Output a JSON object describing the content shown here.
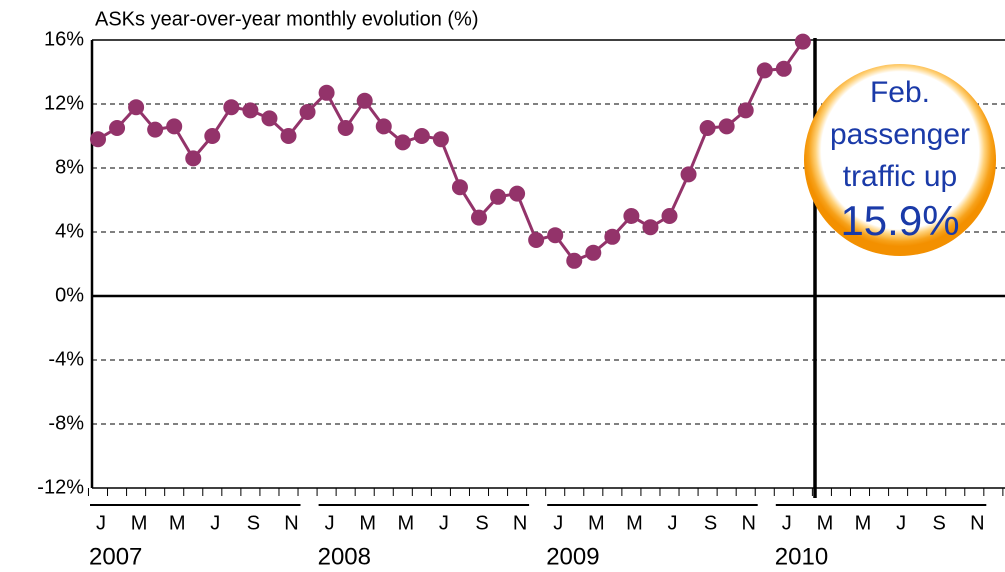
{
  "chart_data": {
    "type": "line",
    "title": "ASKs year-over-year monthly evolution (%)",
    "categories": [
      "J",
      null,
      "M",
      null,
      "M",
      null,
      "J",
      null,
      "S",
      null,
      "N",
      null,
      "J",
      null,
      "M",
      null,
      "M",
      null,
      "J",
      null,
      "S",
      null,
      "N",
      null,
      "J",
      null,
      "M",
      null,
      "M",
      null,
      "J",
      null,
      "S",
      null,
      "N",
      null,
      "J",
      null,
      "M",
      null,
      "M",
      null,
      "J",
      null,
      "S",
      null,
      "N",
      null
    ],
    "years": [
      "2007",
      "2008",
      "2009",
      "2010"
    ],
    "series": [
      {
        "color": "#93336a",
        "values": [
          9.8,
          10.5,
          11.8,
          10.4,
          10.6,
          8.6,
          10.0,
          11.8,
          11.6,
          11.1,
          10.0,
          11.5,
          12.7,
          10.5,
          12.2,
          10.6,
          9.6,
          10.0,
          9.8,
          6.8,
          4.9,
          6.2,
          6.4,
          3.5,
          3.8,
          2.2,
          2.7,
          3.7,
          5.0,
          4.3,
          5.0,
          7.6,
          10.5,
          10.6,
          11.6,
          14.1,
          14.2,
          15.9,
          null,
          null,
          null,
          null,
          null,
          null,
          null,
          null,
          null,
          null
        ]
      }
    ],
    "ylim": [
      -12,
      16
    ],
    "yticks": [
      {
        "value": -12,
        "label": "-12%"
      },
      {
        "value": -8,
        "label": "-8%"
      },
      {
        "value": -4,
        "label": "-4%"
      },
      {
        "value": 0,
        "label": "0%"
      },
      {
        "value": 4,
        "label": "4%"
      },
      {
        "value": 8,
        "label": "8%"
      },
      {
        "value": 12,
        "label": "12%"
      },
      {
        "value": 16,
        "label": "16%"
      }
    ],
    "grid": true,
    "annotation": [
      "Feb.",
      "passenger",
      "traffic up",
      "15.9%"
    ]
  }
}
